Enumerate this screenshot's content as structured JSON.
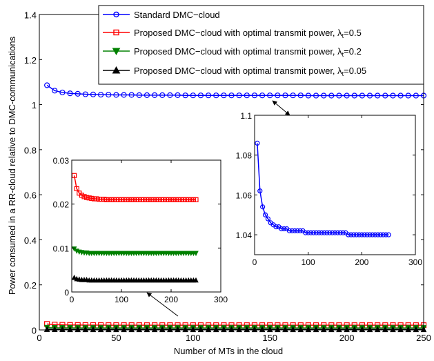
{
  "chart_data": {
    "type": "line",
    "xlabel": "Number of MTs in the cloud",
    "ylabel": "Power consumed in a RR-cloud relative to DMC-communications",
    "xlim": [
      0,
      250
    ],
    "ylim": [
      0,
      1.4
    ],
    "xticks": [
      "0",
      "50",
      "100",
      "150",
      "200",
      "250"
    ],
    "yticks": [
      "0",
      "0.2",
      "0.4",
      "0.6",
      "0.8",
      "1",
      "1.2",
      "1.4"
    ],
    "grid": false,
    "legend_position": "top-right",
    "colors": {
      "standard": "#0000ff",
      "lambda_05": "#ff0000",
      "lambda_02": "#008000",
      "lambda_005": "#000000"
    },
    "legend": {
      "standard": "Standard DMC−cloud",
      "proposed_prefix": "Proposed DMC−cloud with optimal transmit power, ",
      "lambda_symbol": "λ",
      "lambda_subscript": "t",
      "v05": "=0.5",
      "v02": "=0.2",
      "v005": "=0.05"
    },
    "x": [
      5,
      10,
      15,
      20,
      25,
      30,
      35,
      40,
      45,
      50,
      55,
      60,
      65,
      70,
      75,
      80,
      85,
      90,
      95,
      100,
      105,
      110,
      115,
      120,
      125,
      130,
      135,
      140,
      145,
      150,
      155,
      160,
      165,
      170,
      175,
      180,
      185,
      190,
      195,
      200,
      205,
      210,
      215,
      220,
      225,
      230,
      235,
      240,
      245,
      250
    ],
    "series": [
      {
        "key": "standard",
        "marker": "circle",
        "values": [
          1.086,
          1.062,
          1.054,
          1.05,
          1.048,
          1.046,
          1.045,
          1.044,
          1.044,
          1.043,
          1.043,
          1.043,
          1.042,
          1.042,
          1.042,
          1.042,
          1.042,
          1.042,
          1.041,
          1.041,
          1.041,
          1.041,
          1.041,
          1.041,
          1.041,
          1.041,
          1.041,
          1.041,
          1.041,
          1.041,
          1.041,
          1.041,
          1.041,
          1.041,
          1.04,
          1.04,
          1.04,
          1.04,
          1.04,
          1.04,
          1.04,
          1.04,
          1.04,
          1.04,
          1.04,
          1.04,
          1.04,
          1.04,
          1.04,
          1.04
        ]
      },
      {
        "key": "lambda_05",
        "marker": "square",
        "values": [
          0.0265,
          0.0235,
          0.0225,
          0.022,
          0.0217,
          0.0215,
          0.0214,
          0.0213,
          0.0212,
          0.0212,
          0.0211,
          0.0211,
          0.0211,
          0.021,
          0.021,
          0.021,
          0.021,
          0.021,
          0.021,
          0.021,
          0.021,
          0.021,
          0.021,
          0.021,
          0.021,
          0.021,
          0.021,
          0.021,
          0.021,
          0.021,
          0.021,
          0.021,
          0.021,
          0.021,
          0.021,
          0.021,
          0.021,
          0.021,
          0.021,
          0.021,
          0.021,
          0.021,
          0.021,
          0.021,
          0.021,
          0.021,
          0.021,
          0.021,
          0.021,
          0.021
        ]
      },
      {
        "key": "lambda_02",
        "marker": "triangle-down",
        "values": [
          0.0098,
          0.0093,
          0.0091,
          0.009,
          0.0089,
          0.0089,
          0.0088,
          0.0088,
          0.0088,
          0.0088,
          0.0088,
          0.0088,
          0.0088,
          0.0088,
          0.0088,
          0.0088,
          0.0088,
          0.0088,
          0.0088,
          0.0088,
          0.0088,
          0.0088,
          0.0088,
          0.0088,
          0.0088,
          0.0088,
          0.0088,
          0.0088,
          0.0088,
          0.0088,
          0.0088,
          0.0088,
          0.0088,
          0.0088,
          0.0088,
          0.0088,
          0.0088,
          0.0088,
          0.0088,
          0.0088,
          0.0088,
          0.0088,
          0.0088,
          0.0088,
          0.0088,
          0.0088,
          0.0088,
          0.0088,
          0.0088,
          0.0088
        ]
      },
      {
        "key": "lambda_005",
        "marker": "triangle-up",
        "values": [
          0.0033,
          0.003,
          0.0029,
          0.0028,
          0.0028,
          0.0028,
          0.0027,
          0.0027,
          0.0027,
          0.0027,
          0.0027,
          0.0027,
          0.0027,
          0.0027,
          0.0027,
          0.0027,
          0.0027,
          0.0027,
          0.0027,
          0.0027,
          0.0027,
          0.0027,
          0.0027,
          0.0027,
          0.0027,
          0.0027,
          0.0027,
          0.0027,
          0.0027,
          0.0027,
          0.0027,
          0.0027,
          0.0027,
          0.0027,
          0.0027,
          0.0027,
          0.0027,
          0.0027,
          0.0027,
          0.0027,
          0.0027,
          0.0027,
          0.0027,
          0.0027,
          0.0027,
          0.0027,
          0.0027,
          0.0027,
          0.0027,
          0.0027
        ]
      }
    ],
    "insets": [
      {
        "id": "inset-right",
        "series_keys": [
          "standard"
        ],
        "xlim": [
          0,
          300
        ],
        "ylim": [
          1.03,
          1.1
        ],
        "xticks": [
          "0",
          "100",
          "200",
          "300"
        ],
        "yticks": [
          "1.04",
          "1.06",
          "1.08",
          "1.1"
        ]
      },
      {
        "id": "inset-left",
        "series_keys": [
          "lambda_05",
          "lambda_02",
          "lambda_005"
        ],
        "xlim": [
          0,
          300
        ],
        "ylim": [
          0,
          0.03
        ],
        "xticks": [
          "0",
          "100",
          "200",
          "300"
        ],
        "yticks": [
          "0",
          "0.01",
          "0.02",
          "0.03"
        ]
      }
    ]
  }
}
